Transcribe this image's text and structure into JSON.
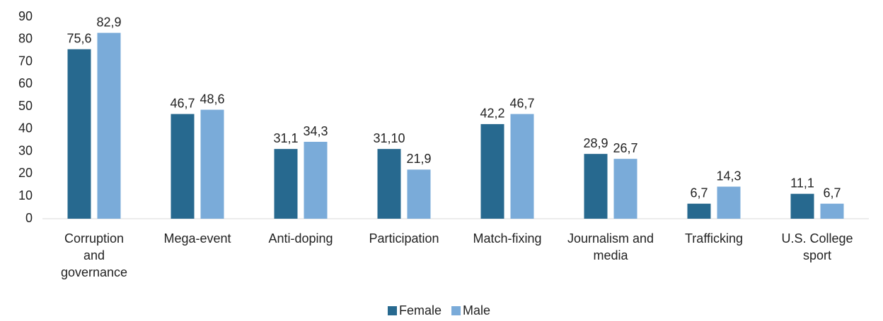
{
  "chart_data": {
    "type": "bar",
    "categories": [
      "Corruption\nand\ngovernance",
      "Mega-event",
      "Anti-doping",
      "Participation",
      "Match-fixing",
      "Journalism and\nmedia",
      "Trafficking",
      "U.S. College\nsport"
    ],
    "series": [
      {
        "name": "Female",
        "color": "#27698f",
        "values": [
          75.6,
          46.7,
          31.1,
          31.1,
          42.2,
          28.9,
          6.7,
          11.1
        ],
        "value_labels": [
          "75,6",
          "46,7",
          "31,1",
          "31,10",
          "42,2",
          "28,9",
          "6,7",
          "11,1"
        ]
      },
      {
        "name": "Male",
        "color": "#7aabd9",
        "values": [
          82.9,
          48.6,
          34.3,
          21.9,
          46.7,
          26.7,
          14.3,
          6.7
        ],
        "value_labels": [
          "82,9",
          "48,6",
          "34,3",
          "21,9",
          "46,7",
          "26,7",
          "14,3",
          "6,7"
        ]
      }
    ],
    "ylim": [
      0,
      90
    ],
    "yticks": [
      0,
      10,
      20,
      30,
      40,
      50,
      60,
      70,
      80,
      90
    ],
    "grid": false,
    "legend": "bottom"
  }
}
